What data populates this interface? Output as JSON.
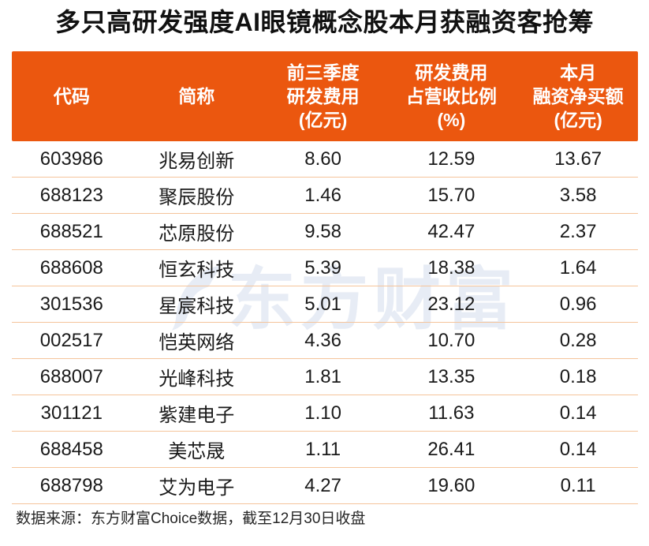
{
  "title": "多只高研发强度AI眼镜概念股本月获融资客抢筹",
  "header": {
    "columns": [
      {
        "lines": [
          "代码"
        ]
      },
      {
        "lines": [
          "简称"
        ]
      },
      {
        "lines": [
          "前三季度",
          "研发费用",
          "(亿元)"
        ]
      },
      {
        "lines": [
          "研发费用",
          "占营收比例",
          "(%)"
        ]
      },
      {
        "lines": [
          "本月",
          "融资净买额",
          "(亿元)"
        ]
      }
    ]
  },
  "watermark": {
    "icon": "eastmoney-logo",
    "text": "东方财富"
  },
  "footer": {
    "text": "数据来源：东方财富Choice数据，截至12月30日收盘"
  },
  "colors": {
    "header_bg": "#eb570f",
    "row_separator": "#f5c49b",
    "title_text": "#111111",
    "body_text": "#1a1a1a",
    "header_text": "#ffffff",
    "watermark": "#e7ecf5"
  },
  "chart_data": {
    "type": "table",
    "title": "多只高研发强度AI眼镜概念股本月获融资客抢筹",
    "columns": [
      "代码",
      "简称",
      "前三季度研发费用(亿元)",
      "研发费用占营收比例(%)",
      "本月融资净买额(亿元)"
    ],
    "rows": [
      [
        "603986",
        "兆易创新",
        "8.60",
        "12.59",
        "13.67"
      ],
      [
        "688123",
        "聚辰股份",
        "1.46",
        "15.70",
        "3.58"
      ],
      [
        "688521",
        "芯原股份",
        "9.58",
        "42.47",
        "2.37"
      ],
      [
        "688608",
        "恒玄科技",
        "5.39",
        "18.38",
        "1.64"
      ],
      [
        "301536",
        "星宸科技",
        "5.01",
        "23.12",
        "0.96"
      ],
      [
        "002517",
        "恺英网络",
        "4.36",
        "10.70",
        "0.28"
      ],
      [
        "688007",
        "光峰科技",
        "1.81",
        "13.35",
        "0.18"
      ],
      [
        "301121",
        "紫建电子",
        "1.10",
        "11.63",
        "0.14"
      ],
      [
        "688458",
        "美芯晟",
        "1.11",
        "26.41",
        "0.14"
      ],
      [
        "688798",
        "艾为电子",
        "4.27",
        "19.60",
        "0.11"
      ]
    ],
    "source_note": "数据来源：东方财富Choice数据，截至12月30日收盘"
  }
}
